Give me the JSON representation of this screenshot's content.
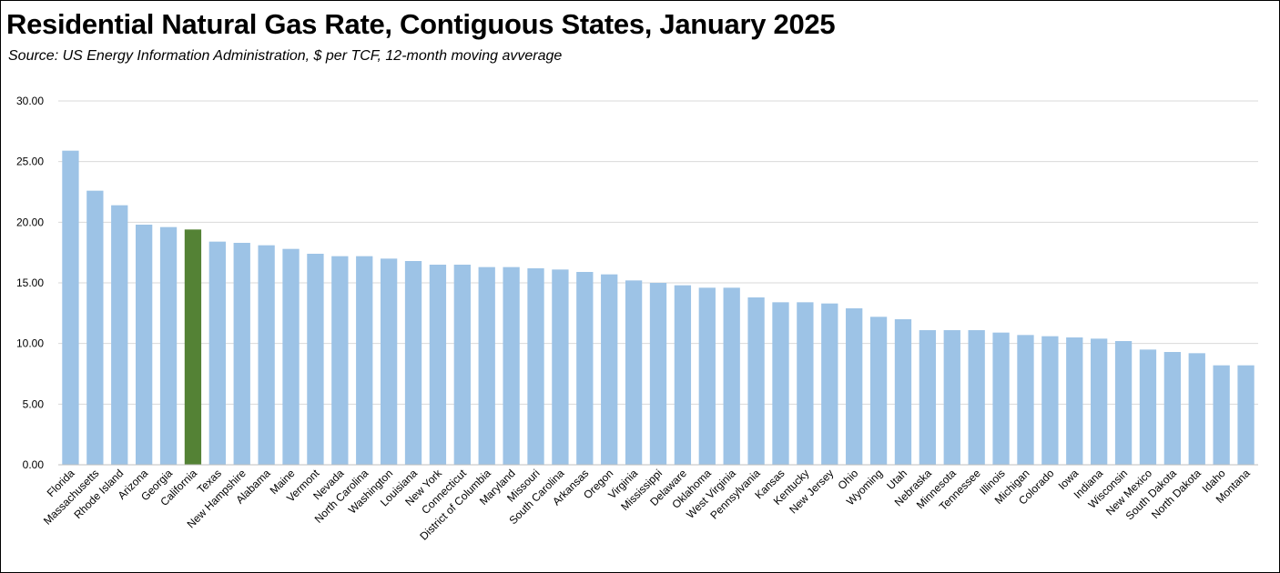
{
  "title": "Residential Natural Gas Rate, Contiguous States, January 2025",
  "subtitle": "Source:  US Energy Information Administration, $ per TCF, 12-month moving avverage",
  "colors": {
    "bar": "#9DC3E6",
    "highlight": "#548235",
    "grid": "#D9D9D9",
    "axis": "#BFBFBF"
  },
  "chart_data": {
    "type": "bar",
    "title": "Residential Natural Gas Rate, Contiguous States, January 2025",
    "subtitle": "Source:  US Energy Information Administration, $ per TCF, 12-month moving avverage",
    "xlabel": "",
    "ylabel": "",
    "ylim": [
      0,
      30
    ],
    "yticks": [
      "0.00",
      "5.00",
      "10.00",
      "15.00",
      "20.00",
      "25.00",
      "30.00"
    ],
    "grid": true,
    "legend": "none",
    "highlight": "California",
    "categories": [
      "Florida",
      "Massachusetts",
      "Rhode Island",
      "Arizona",
      "Georgia",
      "California",
      "Texas",
      "New Hampshire",
      "Alabama",
      "Maine",
      "Vermont",
      "Nevada",
      "North Carolina",
      "Washington",
      "Louisiana",
      "New York",
      "Connecticut",
      "District of Columbia",
      "Maryland",
      "Missouri",
      "South Carolina",
      "Arkansas",
      "Oregon",
      "Virginia",
      "Mississippi",
      "Delaware",
      "Oklahoma",
      "West Virginia",
      "Pennsylvania",
      "Kansas",
      "Kentucky",
      "New Jersey",
      "Ohio",
      "Wyoming",
      "Utah",
      "Nebraska",
      "Minnesota",
      "Tennessee",
      "Illinois",
      "Michigan",
      "Colorado",
      "Iowa",
      "Indiana",
      "Wisconsin",
      "New Mexico",
      "South Dakota",
      "North Dakota",
      "Idaho",
      "Montana"
    ],
    "values": [
      25.9,
      22.6,
      21.4,
      19.8,
      19.6,
      19.4,
      18.4,
      18.3,
      18.1,
      17.8,
      17.4,
      17.2,
      17.2,
      17.0,
      16.8,
      16.5,
      16.5,
      16.3,
      16.3,
      16.2,
      16.1,
      15.9,
      15.7,
      15.2,
      15.0,
      14.8,
      14.6,
      14.6,
      13.8,
      13.4,
      13.4,
      13.3,
      12.9,
      12.2,
      12.0,
      11.1,
      11.1,
      11.1,
      10.9,
      10.7,
      10.6,
      10.5,
      10.4,
      10.2,
      9.5,
      9.3,
      9.2,
      8.2,
      8.2
    ]
  }
}
